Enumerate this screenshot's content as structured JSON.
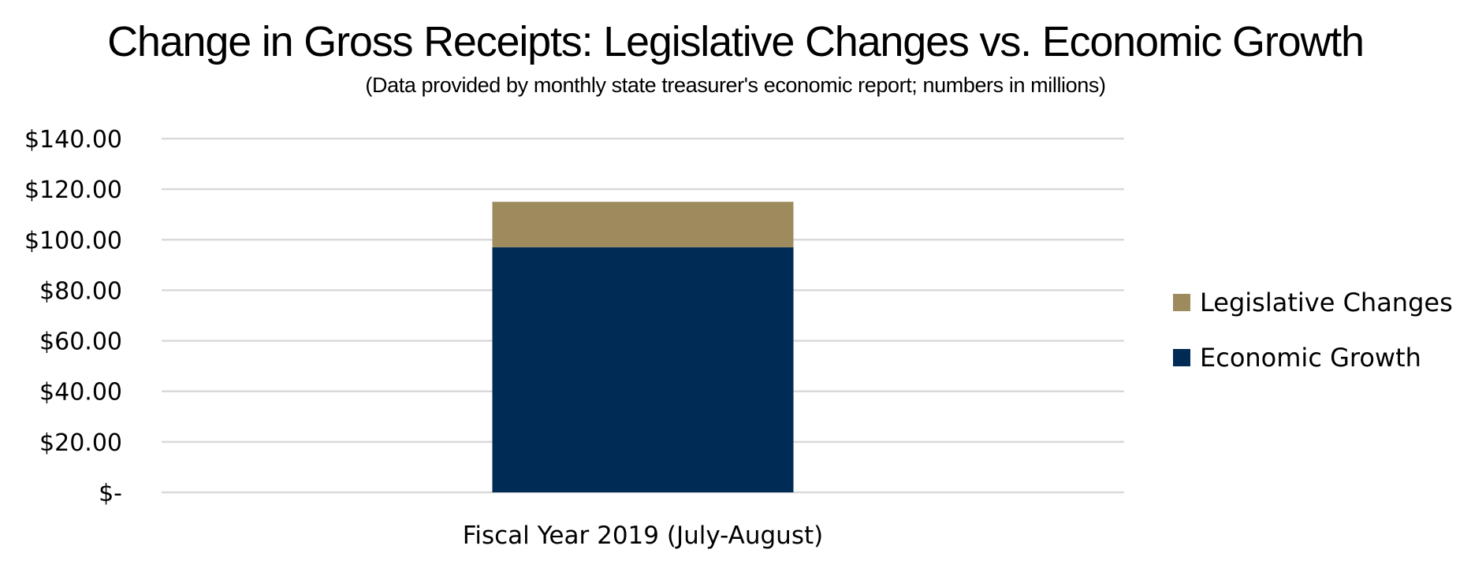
{
  "chart_data": {
    "type": "bar",
    "stacked": true,
    "title": "Change in Gross Receipts: Legislative Changes vs. Economic Growth",
    "subtitle": "(Data provided by monthly state treasurer's economic report; numbers in millions)",
    "categories": [
      "Fiscal Year 2019 (July-August)"
    ],
    "series": [
      {
        "name": "Economic Growth",
        "values": [
          97
        ],
        "color": "#002B55"
      },
      {
        "name": "Legislative Changes",
        "values": [
          18
        ],
        "color": "#9D8B5E"
      }
    ],
    "ylim": [
      0,
      140
    ],
    "yticks": [
      0,
      20,
      40,
      60,
      80,
      100,
      120,
      140
    ],
    "ytick_labels": [
      "$-",
      "$20.00",
      "$40.00",
      "$60.00",
      "$80.00",
      "$100.00",
      "$120.00",
      "$140.00"
    ],
    "grid": true,
    "gridline_color": "#D9D9D9",
    "legend": {
      "position": "right",
      "entries": [
        "Legislative Changes",
        "Economic Growth"
      ]
    }
  }
}
